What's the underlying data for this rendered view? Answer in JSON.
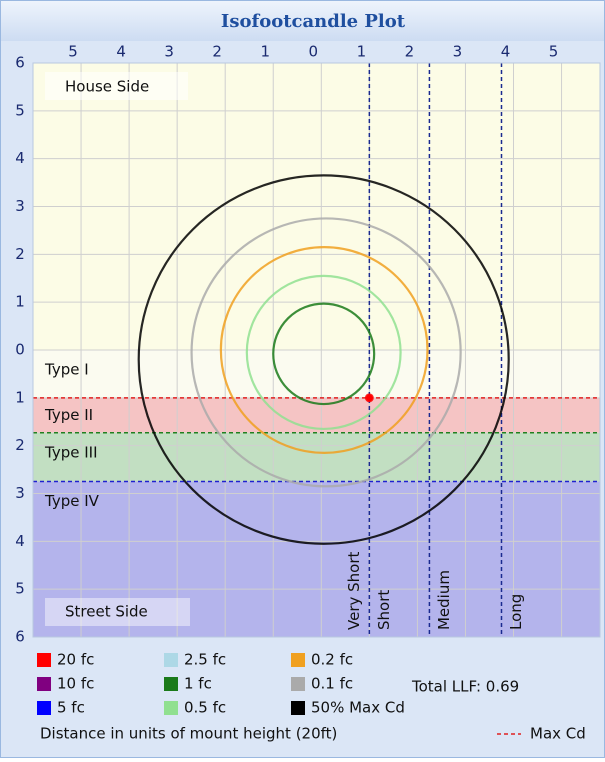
{
  "chart_data": {
    "type": "isofootcandle",
    "title": "Isofootcandle Plot",
    "xlim": [
      -6,
      5.8
    ],
    "ylim": [
      -6,
      6
    ],
    "xticks": [
      {
        "value": -5,
        "label": "5"
      },
      {
        "value": -4,
        "label": "4"
      },
      {
        "value": -3,
        "label": "3"
      },
      {
        "value": -2,
        "label": "2"
      },
      {
        "value": -1,
        "label": "1"
      },
      0,
      1,
      2,
      3,
      4,
      5
    ],
    "yticks": [
      {
        "value": -6,
        "label": "6"
      },
      {
        "value": -5,
        "label": "5"
      },
      {
        "value": -4,
        "label": "4"
      },
      {
        "value": -3,
        "label": "3"
      },
      {
        "value": -2,
        "label": "2"
      },
      {
        "value": -1,
        "label": "1"
      },
      0,
      1,
      2,
      3,
      4,
      5,
      6
    ],
    "grid": true,
    "house_label": "House Side",
    "street_label": "Street Side",
    "zones": [
      {
        "name": "Type I",
        "from": 0,
        "to": 1.0,
        "color": "#fbfbf0"
      },
      {
        "name": "Type II",
        "from": 1.0,
        "to": 1.73,
        "color": "#f5c4c4",
        "line_color": "#e02020"
      },
      {
        "name": "Type III",
        "from": 1.73,
        "to": 2.75,
        "color": "#c2dfc2",
        "line_color": "#208020"
      },
      {
        "name": "Type IV",
        "from": 2.75,
        "to": 6,
        "color": "#b4b4ec",
        "line_color": "#2020d0"
      }
    ],
    "throw_lines": [
      1.0,
      2.25,
      3.75
    ],
    "throw_labels": [
      "Very Short",
      "Short",
      "Medium",
      "Long"
    ],
    "series": [
      {
        "name": "20 fc",
        "color": "#ff0000",
        "cx": 1.0,
        "cy": 1.0,
        "r": 0.07
      },
      {
        "name": "10 fc",
        "color": "#800080"
      },
      {
        "name": "5 fc",
        "color": "#0000ff"
      },
      {
        "name": "2.5 fc",
        "color": "#add8e6"
      },
      {
        "name": "1 fc",
        "color": "#1a7a1a",
        "cx": 0.05,
        "cy": 0.08,
        "r": 1.05
      },
      {
        "name": "0.5 fc",
        "color": "#90e090",
        "cx": 0.05,
        "cy": 0.05,
        "r": 1.6
      },
      {
        "name": "0.2 fc",
        "color": "#f0a020",
        "cx": 0.06,
        "cy": 0.0,
        "r": 2.15
      },
      {
        "name": "0.1 fc",
        "color": "#aaaaaa",
        "cx": 0.1,
        "cy": 0.05,
        "r": 2.8
      },
      {
        "name": "50% Max Cd",
        "color": "#000000",
        "cx": 0.05,
        "cy": 0.2,
        "r": 3.85
      }
    ],
    "total_llf": "Total LLF: 0.69",
    "x_label": "Distance in units of mount height (20ft)",
    "max_cd_label": "Max Cd",
    "max_cd_color": "#e02020"
  }
}
